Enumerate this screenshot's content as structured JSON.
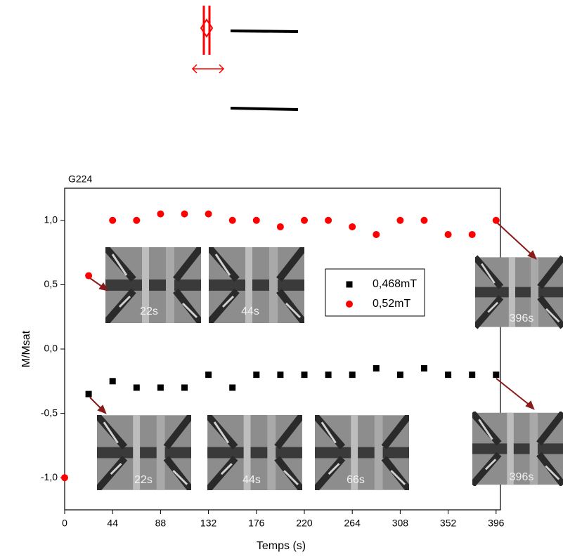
{
  "chart_data": {
    "type": "scatter",
    "title": "G224",
    "x_label": "Temps (s)",
    "y_label": "M/Msat",
    "xlim": [
      0,
      400
    ],
    "xticks": [
      0,
      44,
      88,
      132,
      176,
      220,
      264,
      308,
      352,
      396
    ],
    "ylim": [
      -1.25,
      1.25
    ],
    "yticks": [
      {
        "value": -1.0,
        "label": "-1,0"
      },
      {
        "value": -0.5,
        "label": "-0,5"
      },
      {
        "value": 0.0,
        "label": "0,0"
      },
      {
        "value": 0.5,
        "label": "0,5"
      },
      {
        "value": 1.0,
        "label": "1,0"
      }
    ],
    "series": [
      {
        "name": "0,468mT",
        "color": "#000000",
        "marker": "square",
        "x": [
          22,
          44,
          66,
          88,
          110,
          132,
          154,
          176,
          198,
          220,
          242,
          264,
          286,
          308,
          330,
          352,
          374,
          396
        ],
        "values": [
          -0.35,
          -0.25,
          -0.3,
          -0.3,
          -0.3,
          -0.2,
          -0.3,
          -0.2,
          -0.2,
          -0.2,
          -0.2,
          -0.2,
          -0.15,
          -0.2,
          -0.15,
          -0.2,
          -0.2,
          -0.2
        ]
      },
      {
        "name": "0,52mT",
        "color": "#ff0000",
        "marker": "circle",
        "x": [
          0,
          22,
          44,
          66,
          88,
          110,
          132,
          154,
          176,
          198,
          220,
          242,
          264,
          286,
          308,
          330,
          352,
          374,
          396
        ],
        "values": [
          -1.0,
          0.57,
          1.0,
          1.0,
          1.05,
          1.05,
          1.05,
          1.0,
          1.0,
          0.95,
          1.0,
          1.0,
          0.95,
          0.89,
          1.0,
          1.0,
          0.89,
          0.89,
          1.0
        ]
      }
    ],
    "image_labels": [
      "22s",
      "44s",
      "396s",
      "22s",
      "44s",
      "66s",
      "396s"
    ]
  }
}
